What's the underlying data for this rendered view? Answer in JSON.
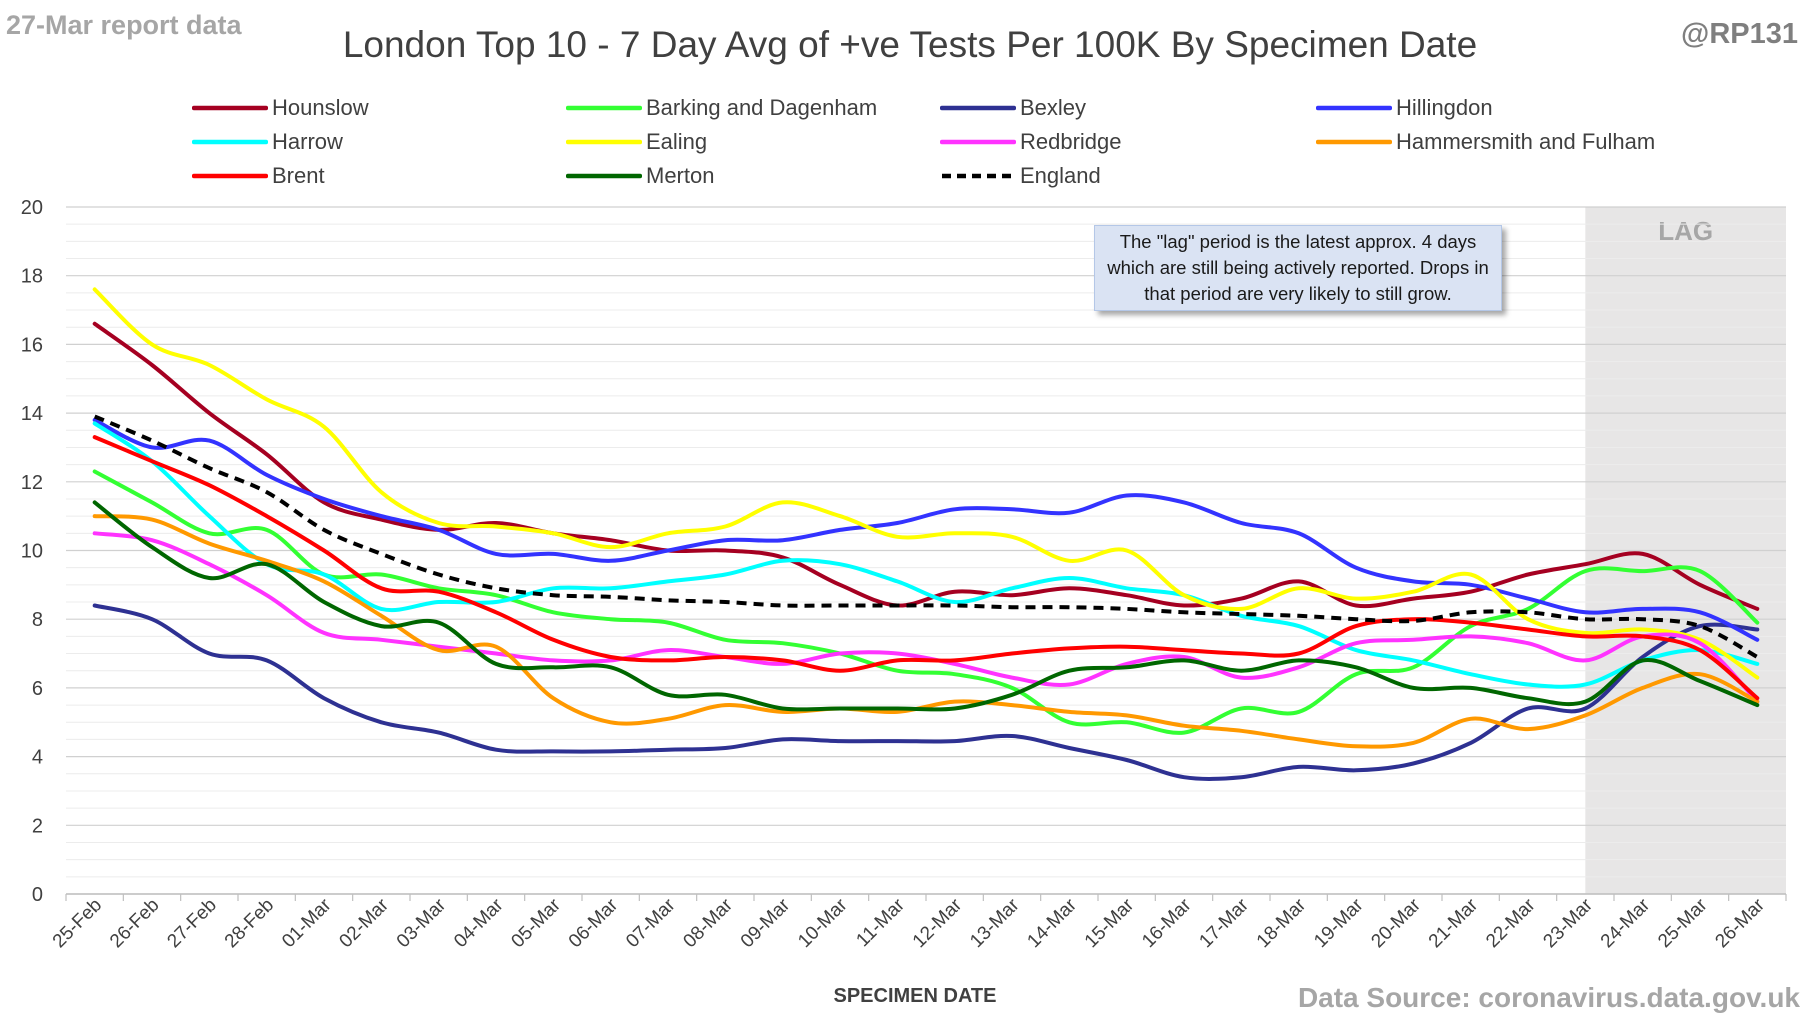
{
  "header": {
    "report_label": "27-Mar report data",
    "handle": "@RP131",
    "title": "London Top 10 - 7 Day Avg of +ve Tests Per 100K By Specimen Date"
  },
  "footer": {
    "source": "Data Source: coronavirus.data.gov.uk"
  },
  "annotation": {
    "note": "The \"lag\" period is the latest approx. 4 days which are still being actively reported. Drops in that period are very likely to still grow.",
    "lag_label": "LAG"
  },
  "chart_data": {
    "type": "line",
    "xlabel": "SPECIMEN DATE",
    "ylabel": "",
    "ylim": [
      0,
      20
    ],
    "yticks": [
      0,
      2,
      4,
      6,
      8,
      10,
      12,
      14,
      16,
      18,
      20
    ],
    "grid": true,
    "minor_grid": true,
    "legend_position": "top",
    "lag_start_category": "23-Mar",
    "x": [
      "25-Feb",
      "26-Feb",
      "27-Feb",
      "28-Feb",
      "01-Mar",
      "02-Mar",
      "03-Mar",
      "04-Mar",
      "05-Mar",
      "06-Mar",
      "07-Mar",
      "08-Mar",
      "09-Mar",
      "10-Mar",
      "11-Mar",
      "12-Mar",
      "13-Mar",
      "14-Mar",
      "15-Mar",
      "16-Mar",
      "17-Mar",
      "18-Mar",
      "19-Mar",
      "20-Mar",
      "21-Mar",
      "22-Mar",
      "23-Mar",
      "24-Mar",
      "25-Mar",
      "26-Mar"
    ],
    "series": [
      {
        "name": "Hounslow",
        "color": "#a50021",
        "dashed": false,
        "values": [
          16.6,
          15.4,
          14.0,
          12.8,
          11.4,
          10.9,
          10.6,
          10.8,
          10.5,
          10.3,
          10.0,
          10.0,
          9.8,
          9.0,
          8.4,
          8.8,
          8.7,
          8.9,
          8.7,
          8.4,
          8.6,
          9.1,
          8.4,
          8.6,
          8.8,
          9.3,
          9.6,
          9.9,
          9.0,
          8.3
        ]
      },
      {
        "name": "Barking and Dagenham",
        "color": "#33ff33",
        "dashed": false,
        "values": [
          12.3,
          11.4,
          10.5,
          10.6,
          9.3,
          9.3,
          8.9,
          8.7,
          8.2,
          8.0,
          7.9,
          7.4,
          7.3,
          7.0,
          6.5,
          6.4,
          6.0,
          5.0,
          5.0,
          4.7,
          5.4,
          5.3,
          6.4,
          6.6,
          7.8,
          8.3,
          9.4,
          9.4,
          9.4,
          7.9
        ]
      },
      {
        "name": "Bexley",
        "color": "#2e3192",
        "dashed": false,
        "values": [
          8.4,
          8.0,
          7.0,
          6.8,
          5.7,
          5.0,
          4.7,
          4.2,
          4.15,
          4.15,
          4.2,
          4.25,
          4.5,
          4.45,
          4.45,
          4.45,
          4.6,
          4.25,
          3.9,
          3.4,
          3.4,
          3.7,
          3.6,
          3.8,
          4.4,
          5.4,
          5.4,
          6.9,
          7.8,
          7.7
        ]
      },
      {
        "name": "Hillingdon",
        "color": "#3333ff",
        "dashed": false,
        "values": [
          13.8,
          13.0,
          13.2,
          12.2,
          11.5,
          11.0,
          10.6,
          9.9,
          9.9,
          9.7,
          10.0,
          10.3,
          10.3,
          10.6,
          10.8,
          11.2,
          11.2,
          11.1,
          11.6,
          11.4,
          10.8,
          10.5,
          9.5,
          9.1,
          9.0,
          8.6,
          8.2,
          8.3,
          8.2,
          7.4
        ]
      },
      {
        "name": "Harrow",
        "color": "#00ffff",
        "dashed": false,
        "values": [
          13.7,
          12.6,
          11.0,
          9.6,
          9.3,
          8.3,
          8.5,
          8.5,
          8.9,
          8.9,
          9.1,
          9.3,
          9.7,
          9.6,
          9.1,
          8.5,
          8.9,
          9.2,
          8.9,
          8.7,
          8.1,
          7.8,
          7.1,
          6.8,
          6.4,
          6.1,
          6.1,
          6.8,
          7.1,
          6.7
        ]
      },
      {
        "name": "Ealing",
        "color": "#ffff00",
        "dashed": false,
        "values": [
          17.6,
          16.0,
          15.4,
          14.4,
          13.6,
          11.7,
          10.8,
          10.7,
          10.5,
          10.1,
          10.5,
          10.7,
          11.4,
          11.0,
          10.4,
          10.5,
          10.4,
          9.7,
          10.0,
          8.7,
          8.3,
          8.9,
          8.6,
          8.8,
          9.3,
          8.0,
          7.6,
          7.7,
          7.4,
          6.3
        ]
      },
      {
        "name": "Redbridge",
        "color": "#ff33ff",
        "dashed": false,
        "values": [
          10.5,
          10.3,
          9.6,
          8.7,
          7.6,
          7.4,
          7.2,
          7.0,
          6.8,
          6.8,
          7.1,
          6.9,
          6.7,
          7.0,
          7.0,
          6.7,
          6.3,
          6.1,
          6.7,
          6.9,
          6.3,
          6.6,
          7.3,
          7.4,
          7.5,
          7.3,
          6.8,
          7.5,
          7.3,
          5.6
        ]
      },
      {
        "name": "Hammersmith and Fulham",
        "color": "#ff9900",
        "dashed": false,
        "values": [
          11.0,
          10.9,
          10.2,
          9.7,
          9.1,
          8.1,
          7.1,
          7.2,
          5.7,
          5.0,
          5.1,
          5.5,
          5.3,
          5.4,
          5.3,
          5.6,
          5.5,
          5.3,
          5.2,
          4.9,
          4.75,
          4.5,
          4.3,
          4.4,
          5.1,
          4.8,
          5.2,
          6.0,
          6.4,
          5.6
        ]
      },
      {
        "name": "Brent",
        "color": "#ff0000",
        "dashed": false,
        "values": [
          13.3,
          12.6,
          11.9,
          11.0,
          10.0,
          8.9,
          8.8,
          8.2,
          7.4,
          6.9,
          6.8,
          6.9,
          6.8,
          6.5,
          6.8,
          6.8,
          7.0,
          7.15,
          7.2,
          7.1,
          7.0,
          7.0,
          7.8,
          8.0,
          7.9,
          7.7,
          7.5,
          7.5,
          7.1,
          5.7
        ]
      },
      {
        "name": "Merton",
        "color": "#006600",
        "dashed": false,
        "values": [
          11.4,
          10.1,
          9.2,
          9.6,
          8.5,
          7.8,
          7.9,
          6.7,
          6.6,
          6.6,
          5.8,
          5.8,
          5.4,
          5.4,
          5.4,
          5.4,
          5.8,
          6.5,
          6.6,
          6.8,
          6.5,
          6.8,
          6.6,
          6.0,
          6.0,
          5.7,
          5.6,
          6.8,
          6.2,
          5.5
        ]
      },
      {
        "name": "England",
        "color": "#000000",
        "dashed": true,
        "values": [
          13.9,
          13.2,
          12.4,
          11.7,
          10.6,
          9.9,
          9.3,
          8.9,
          8.7,
          8.65,
          8.55,
          8.5,
          8.4,
          8.4,
          8.4,
          8.4,
          8.35,
          8.35,
          8.3,
          8.2,
          8.15,
          8.1,
          8.0,
          7.95,
          8.2,
          8.2,
          8.0,
          8.0,
          7.8,
          6.9
        ]
      }
    ]
  }
}
